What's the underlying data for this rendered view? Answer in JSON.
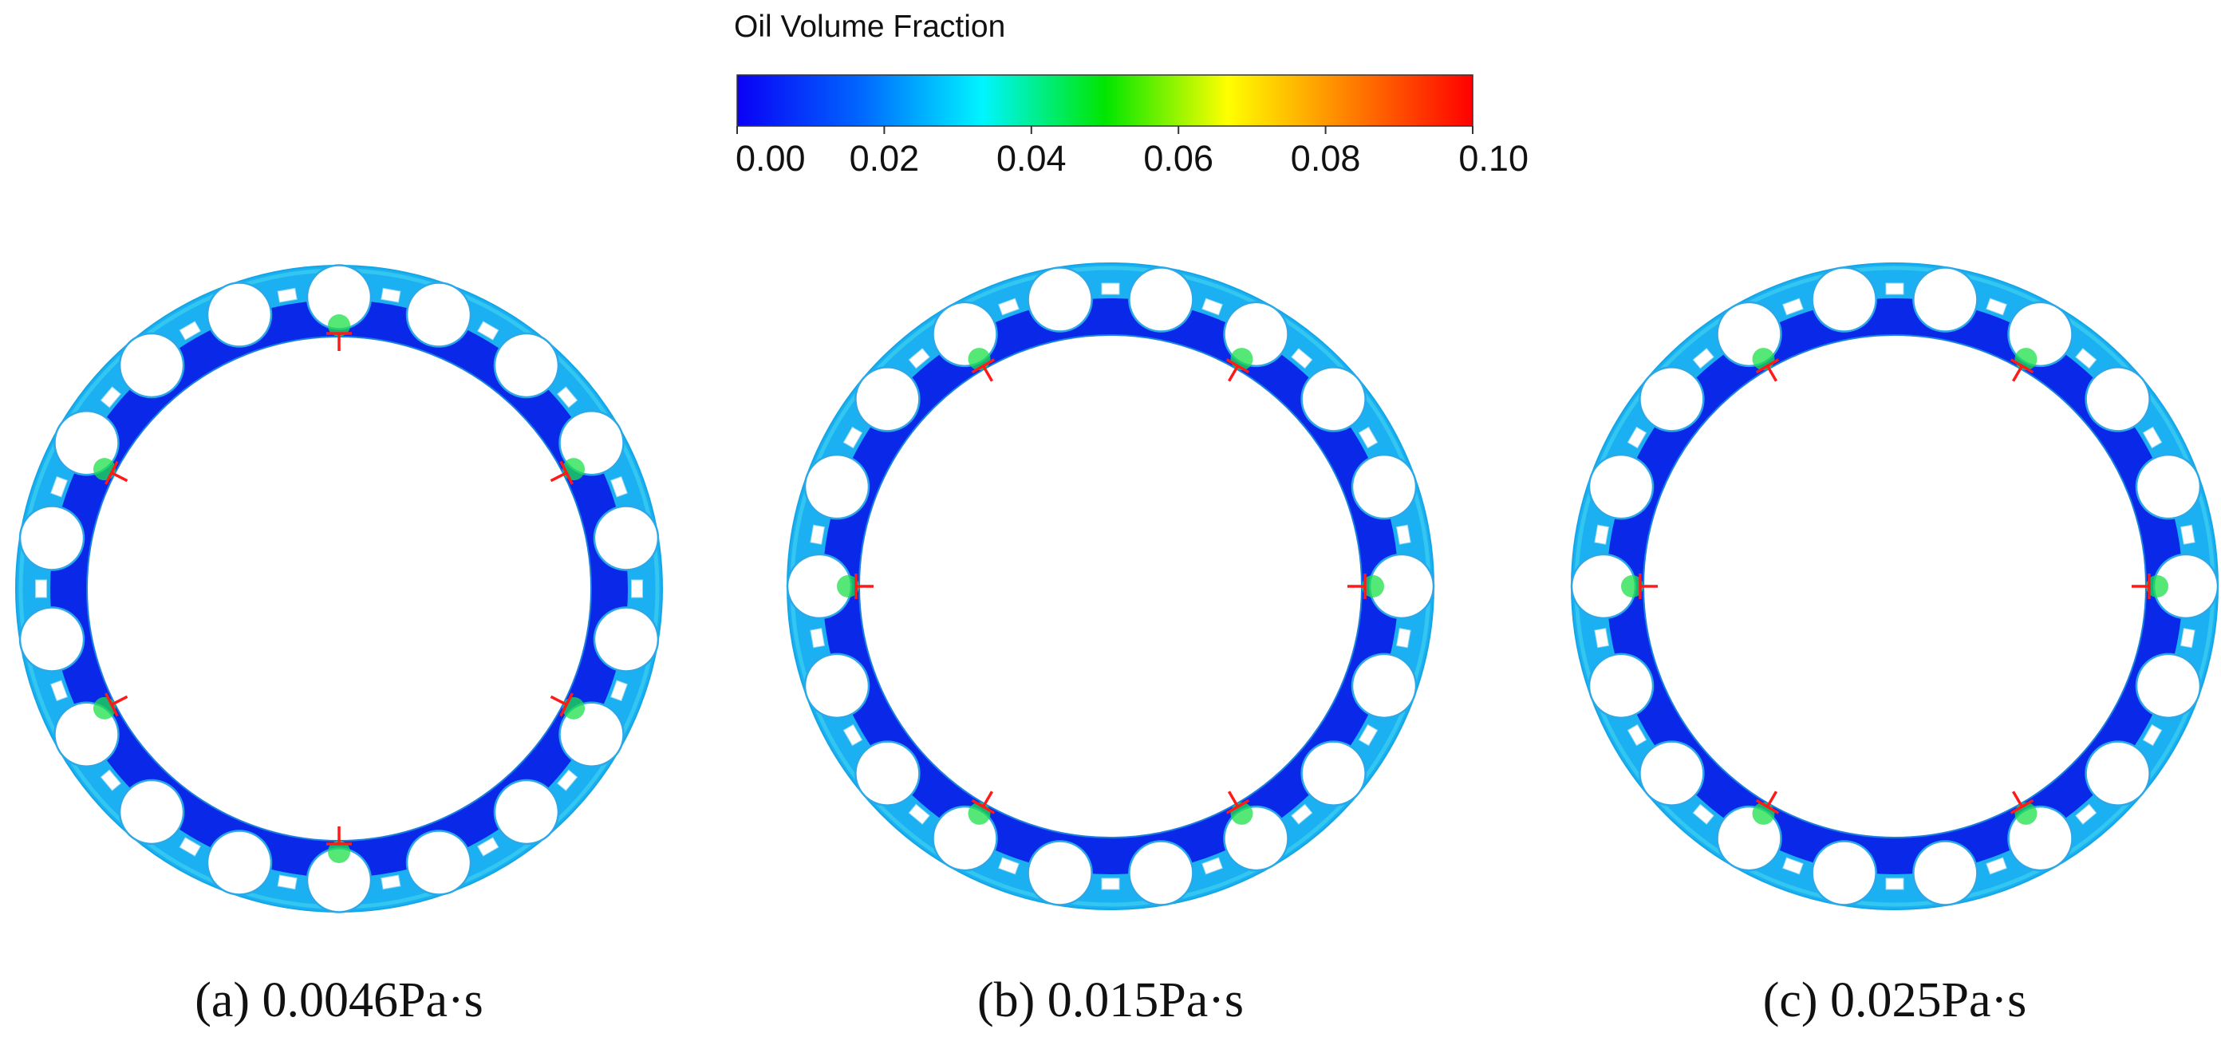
{
  "legend": {
    "title": "Oil Volume Fraction",
    "ticks": [
      "0.00",
      "0.02",
      "0.04",
      "0.06",
      "0.08",
      "0.10"
    ],
    "range": [
      0.0,
      0.1
    ],
    "colormap": [
      "#0a00f5",
      "#0066ff",
      "#00f5ff",
      "#00e600",
      "#ffff00",
      "#ff7f00",
      "#ff0000"
    ]
  },
  "panels": [
    {
      "caption": "(a) 0.0046Pa·s",
      "roller_count": 18,
      "marker_angles": [
        -90,
        -27,
        27,
        90,
        153,
        207
      ]
    },
    {
      "caption": "(b) 0.015Pa·s",
      "roller_count": 18,
      "marker_angles": [
        -120,
        -60,
        0,
        60,
        120,
        180
      ]
    },
    {
      "caption": "(c) 0.025Pa·s",
      "roller_count": 18,
      "marker_angles": [
        -120,
        -60,
        0,
        60,
        120,
        180
      ]
    }
  ],
  "colors": {
    "bearing_fill": "#1ab0f2",
    "cage_fill": "#0a28e8",
    "film_green": "#1ee04a",
    "marker": "#ff1a1a"
  }
}
